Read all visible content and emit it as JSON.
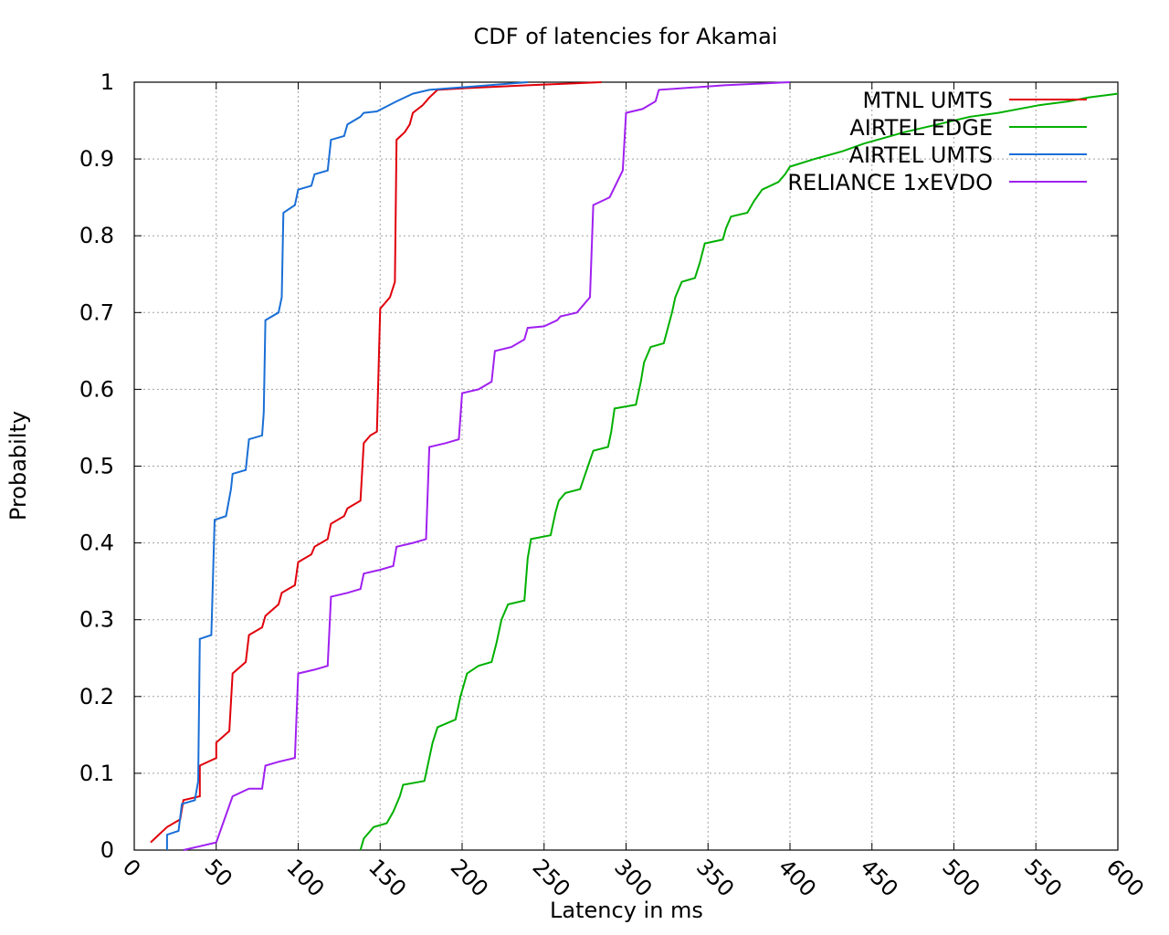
{
  "chart_data": {
    "type": "line",
    "title": "CDF of latencies for Akamai",
    "xlabel": "Latency in ms",
    "ylabel": "Probabilty",
    "xlim": [
      0,
      600
    ],
    "ylim": [
      0,
      1
    ],
    "xticks": [
      "0",
      "50",
      "100",
      "150",
      "200",
      "250",
      "300",
      "350",
      "400",
      "450",
      "500",
      "550",
      "600"
    ],
    "yticks": [
      "0",
      "0.1",
      "0.2",
      "0.3",
      "0.4",
      "0.5",
      "0.6",
      "0.7",
      "0.8",
      "0.9",
      "1"
    ],
    "grid": true,
    "legend_position": "top-right",
    "series": [
      {
        "name": "MTNL UMTS",
        "color": "#e0000a",
        "points": [
          [
            10,
            0.01
          ],
          [
            20,
            0.03
          ],
          [
            28,
            0.04
          ],
          [
            30,
            0.065
          ],
          [
            40,
            0.07
          ],
          [
            40,
            0.11
          ],
          [
            50,
            0.12
          ],
          [
            50,
            0.14
          ],
          [
            58,
            0.155
          ],
          [
            60,
            0.23
          ],
          [
            68,
            0.245
          ],
          [
            70,
            0.28
          ],
          [
            78,
            0.29
          ],
          [
            80,
            0.305
          ],
          [
            88,
            0.32
          ],
          [
            90,
            0.335
          ],
          [
            98,
            0.345
          ],
          [
            100,
            0.375
          ],
          [
            108,
            0.385
          ],
          [
            110,
            0.395
          ],
          [
            118,
            0.405
          ],
          [
            120,
            0.425
          ],
          [
            128,
            0.435
          ],
          [
            130,
            0.445
          ],
          [
            138,
            0.455
          ],
          [
            140,
            0.53
          ],
          [
            144,
            0.54
          ],
          [
            148,
            0.545
          ],
          [
            150,
            0.705
          ],
          [
            156,
            0.72
          ],
          [
            159,
            0.74
          ],
          [
            160,
            0.925
          ],
          [
            165,
            0.935
          ],
          [
            168,
            0.945
          ],
          [
            170,
            0.96
          ],
          [
            176,
            0.97
          ],
          [
            180,
            0.98
          ],
          [
            185,
            0.99
          ],
          [
            200,
            0.992
          ],
          [
            240,
            0.996
          ],
          [
            285,
            1.0
          ]
        ]
      },
      {
        "name": "AIRTEL EDGE",
        "color": "#00b000",
        "points": [
          [
            138,
            0.0
          ],
          [
            140,
            0.015
          ],
          [
            144,
            0.025
          ],
          [
            146,
            0.03
          ],
          [
            154,
            0.035
          ],
          [
            158,
            0.05
          ],
          [
            162,
            0.07
          ],
          [
            164,
            0.085
          ],
          [
            177,
            0.09
          ],
          [
            180,
            0.12
          ],
          [
            182,
            0.14
          ],
          [
            185,
            0.16
          ],
          [
            196,
            0.17
          ],
          [
            199,
            0.2
          ],
          [
            201,
            0.215
          ],
          [
            203,
            0.23
          ],
          [
            210,
            0.24
          ],
          [
            218,
            0.245
          ],
          [
            221,
            0.27
          ],
          [
            224,
            0.3
          ],
          [
            228,
            0.32
          ],
          [
            238,
            0.325
          ],
          [
            240,
            0.38
          ],
          [
            242,
            0.405
          ],
          [
            254,
            0.41
          ],
          [
            257,
            0.44
          ],
          [
            259,
            0.455
          ],
          [
            263,
            0.465
          ],
          [
            272,
            0.47
          ],
          [
            276,
            0.495
          ],
          [
            280,
            0.52
          ],
          [
            289,
            0.525
          ],
          [
            291,
            0.545
          ],
          [
            293,
            0.575
          ],
          [
            306,
            0.58
          ],
          [
            309,
            0.61
          ],
          [
            311,
            0.635
          ],
          [
            315,
            0.655
          ],
          [
            323,
            0.66
          ],
          [
            328,
            0.7
          ],
          [
            330,
            0.72
          ],
          [
            334,
            0.74
          ],
          [
            342,
            0.745
          ],
          [
            345,
            0.765
          ],
          [
            348,
            0.79
          ],
          [
            359,
            0.795
          ],
          [
            361,
            0.81
          ],
          [
            364,
            0.825
          ],
          [
            374,
            0.83
          ],
          [
            378,
            0.845
          ],
          [
            383,
            0.86
          ],
          [
            393,
            0.87
          ],
          [
            397,
            0.88
          ],
          [
            400,
            0.89
          ],
          [
            415,
            0.9
          ],
          [
            432,
            0.91
          ],
          [
            445,
            0.92
          ],
          [
            470,
            0.935
          ],
          [
            490,
            0.945
          ],
          [
            510,
            0.955
          ],
          [
            527,
            0.96
          ],
          [
            552,
            0.97
          ],
          [
            570,
            0.975
          ],
          [
            582,
            0.98
          ],
          [
            600,
            0.985
          ]
        ]
      },
      {
        "name": "AIRTEL UMTS",
        "color": "#1a6fd6",
        "points": [
          [
            20,
            0.0
          ],
          [
            20,
            0.02
          ],
          [
            27,
            0.025
          ],
          [
            29,
            0.06
          ],
          [
            37,
            0.065
          ],
          [
            39,
            0.09
          ],
          [
            40,
            0.275
          ],
          [
            47,
            0.28
          ],
          [
            49,
            0.43
          ],
          [
            56,
            0.435
          ],
          [
            59,
            0.47
          ],
          [
            60,
            0.49
          ],
          [
            68,
            0.495
          ],
          [
            70,
            0.535
          ],
          [
            78,
            0.54
          ],
          [
            79,
            0.57
          ],
          [
            80,
            0.69
          ],
          [
            88,
            0.7
          ],
          [
            90,
            0.72
          ],
          [
            91,
            0.83
          ],
          [
            98,
            0.84
          ],
          [
            100,
            0.86
          ],
          [
            108,
            0.865
          ],
          [
            110,
            0.88
          ],
          [
            118,
            0.885
          ],
          [
            120,
            0.925
          ],
          [
            128,
            0.93
          ],
          [
            130,
            0.945
          ],
          [
            138,
            0.955
          ],
          [
            140,
            0.96
          ],
          [
            148,
            0.962
          ],
          [
            160,
            0.975
          ],
          [
            170,
            0.985
          ],
          [
            180,
            0.99
          ],
          [
            210,
            0.995
          ],
          [
            240,
            1.0
          ]
        ]
      },
      {
        "name": "RELIANCE 1xEVDO",
        "color": "#a020f0",
        "points": [
          [
            30,
            0.0
          ],
          [
            40,
            0.005
          ],
          [
            50,
            0.01
          ],
          [
            60,
            0.07
          ],
          [
            70,
            0.08
          ],
          [
            78,
            0.08
          ],
          [
            80,
            0.11
          ],
          [
            88,
            0.115
          ],
          [
            98,
            0.12
          ],
          [
            100,
            0.23
          ],
          [
            110,
            0.235
          ],
          [
            118,
            0.24
          ],
          [
            120,
            0.33
          ],
          [
            130,
            0.335
          ],
          [
            138,
            0.34
          ],
          [
            140,
            0.36
          ],
          [
            150,
            0.365
          ],
          [
            158,
            0.37
          ],
          [
            160,
            0.395
          ],
          [
            170,
            0.4
          ],
          [
            178,
            0.405
          ],
          [
            180,
            0.525
          ],
          [
            190,
            0.53
          ],
          [
            198,
            0.535
          ],
          [
            200,
            0.595
          ],
          [
            210,
            0.6
          ],
          [
            218,
            0.61
          ],
          [
            220,
            0.65
          ],
          [
            230,
            0.655
          ],
          [
            238,
            0.665
          ],
          [
            240,
            0.68
          ],
          [
            250,
            0.682
          ],
          [
            258,
            0.69
          ],
          [
            260,
            0.695
          ],
          [
            270,
            0.7
          ],
          [
            278,
            0.72
          ],
          [
            280,
            0.84
          ],
          [
            290,
            0.85
          ],
          [
            298,
            0.885
          ],
          [
            300,
            0.96
          ],
          [
            310,
            0.965
          ],
          [
            318,
            0.975
          ],
          [
            320,
            0.99
          ],
          [
            340,
            0.993
          ],
          [
            360,
            0.996
          ],
          [
            400,
            1.0
          ]
        ]
      }
    ]
  }
}
